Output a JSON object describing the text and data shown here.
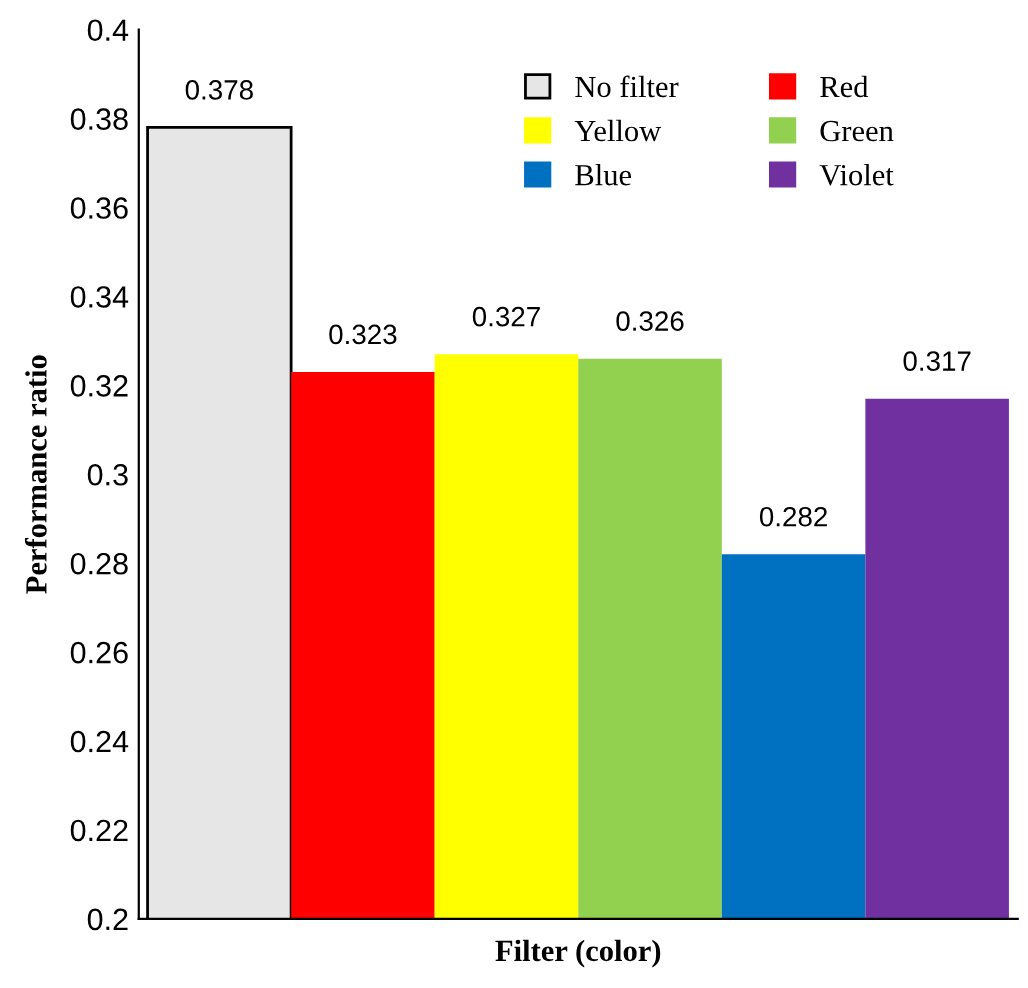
{
  "chart_data": {
    "type": "bar",
    "xlabel": "Filter (color)",
    "ylabel": "Performance ratio",
    "categories": [
      null
    ],
    "series": [
      {
        "name": "No filter",
        "color": "#e7e6e6",
        "values": [
          0.378
        ]
      },
      {
        "name": "Red",
        "color": "#ff0000",
        "values": [
          0.323
        ]
      },
      {
        "name": "Yellow",
        "color": "#ffff00",
        "values": [
          0.327
        ]
      },
      {
        "name": "Green",
        "color": "#92d050",
        "values": [
          0.326
        ]
      },
      {
        "name": "Blue",
        "color": "#0070c0",
        "values": [
          0.282
        ]
      },
      {
        "name": "Violet",
        "color": "#7030a0",
        "values": [
          0.317
        ]
      }
    ],
    "ylim": [
      0.2,
      0.4
    ],
    "yticks": [
      0.2,
      0.22,
      0.24,
      0.26,
      0.28,
      0.3,
      0.32,
      0.34,
      0.36,
      0.38,
      0.4
    ],
    "data_labels": true,
    "grid": false,
    "legend": "top right"
  }
}
